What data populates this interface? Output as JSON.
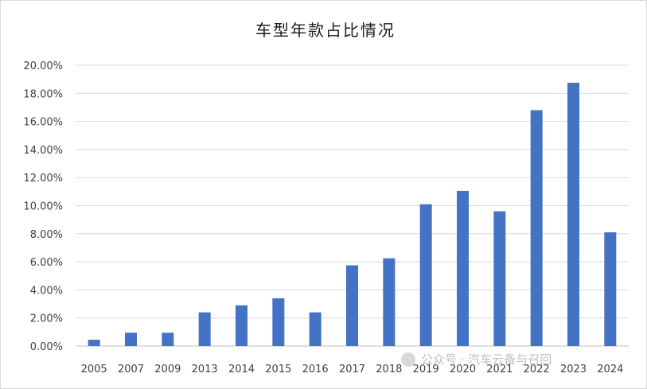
{
  "chart_data": {
    "type": "bar",
    "title": "车型年款占比情况",
    "categories": [
      "2005",
      "2007",
      "2009",
      "2013",
      "2014",
      "2015",
      "2016",
      "2017",
      "2018",
      "2019",
      "2020",
      "2021",
      "2022",
      "2023",
      "2024"
    ],
    "values": [
      0.45,
      0.95,
      0.95,
      2.4,
      2.9,
      3.4,
      2.4,
      5.75,
      6.25,
      10.1,
      11.05,
      9.6,
      16.8,
      18.75,
      8.1
    ],
    "y_tick_labels": [
      "0.00%",
      "2.00%",
      "4.00%",
      "6.00%",
      "8.00%",
      "10.00%",
      "12.00%",
      "14.00%",
      "16.00%",
      "18.00%",
      "20.00%"
    ],
    "ylim": [
      0,
      20
    ],
    "y_unit": "percent",
    "grid": true,
    "bar_color": "#4472c4",
    "xlabel": "",
    "ylabel": ""
  },
  "watermark": {
    "text": "公众号 · 汽车云备与召回"
  }
}
